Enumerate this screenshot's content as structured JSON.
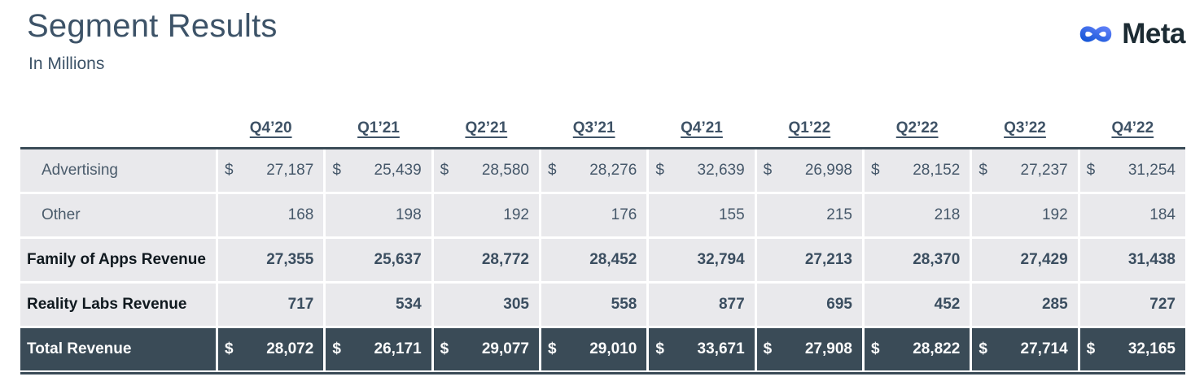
{
  "page": {
    "title": "Segment Results",
    "subtitle": "In Millions"
  },
  "logo": {
    "wordmark": "Meta",
    "glyph": "meta-infinity-logo",
    "gradient_start": "#1858d8",
    "gradient_end": "#5c7ef7",
    "wordmark_color": "#1c2b33"
  },
  "table": {
    "currency_symbol": "$",
    "columns": [
      "Q4’20",
      "Q1’21",
      "Q2’21",
      "Q3’21",
      "Q4’21",
      "Q1’22",
      "Q2’22",
      "Q3’22",
      "Q4’22"
    ],
    "rows": [
      {
        "label": "Advertising",
        "bold": false,
        "dollar": true,
        "total": false,
        "values": [
          "27,187",
          "25,439",
          "28,580",
          "28,276",
          "32,639",
          "26,998",
          "28,152",
          "27,237",
          "31,254"
        ]
      },
      {
        "label": "Other",
        "bold": false,
        "dollar": false,
        "total": false,
        "values": [
          "168",
          "198",
          "192",
          "176",
          "155",
          "215",
          "218",
          "192",
          "184"
        ]
      },
      {
        "label": "Family of Apps Revenue",
        "bold": true,
        "dollar": false,
        "total": false,
        "values": [
          "27,355",
          "25,637",
          "28,772",
          "28,452",
          "32,794",
          "27,213",
          "28,370",
          "27,429",
          "31,438"
        ]
      },
      {
        "label": "Reality Labs Revenue",
        "bold": true,
        "dollar": false,
        "total": false,
        "values": [
          "717",
          "534",
          "305",
          "558",
          "877",
          "695",
          "452",
          "285",
          "727"
        ]
      },
      {
        "label": "Total Revenue",
        "bold": true,
        "dollar": true,
        "total": true,
        "values": [
          "28,072",
          "26,171",
          "29,077",
          "29,010",
          "33,671",
          "27,908",
          "28,822",
          "27,714",
          "32,165"
        ]
      }
    ]
  },
  "colors": {
    "accent_dark": "#3a4b57",
    "cell_bg": "#e9e9ec",
    "heading": "#3d5368",
    "header_text": "#3e5266"
  }
}
